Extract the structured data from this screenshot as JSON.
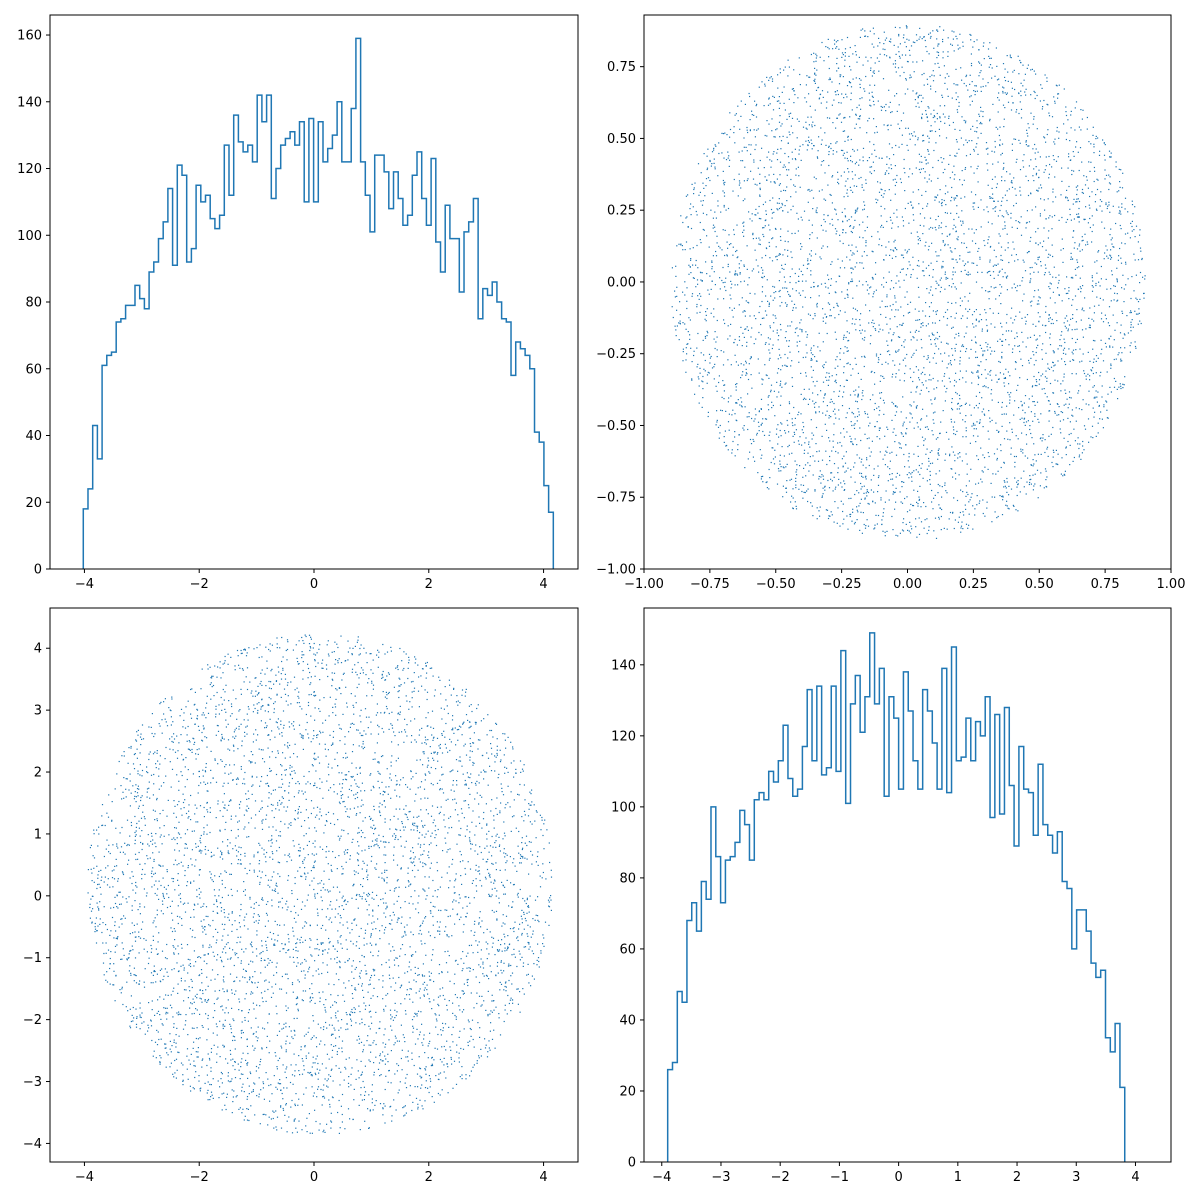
{
  "chart_data": [
    {
      "type": "histogram",
      "histtype": "step",
      "color": "#1f77b4",
      "xlim": [
        -4.6,
        4.6
      ],
      "ylim": [
        0,
        166
      ],
      "xticks": [
        -4,
        -2,
        0,
        2,
        4
      ],
      "xtick_labels": [
        "−4",
        "−2",
        "0",
        "2",
        "4"
      ],
      "yticks": [
        0,
        20,
        40,
        60,
        80,
        100,
        120,
        140,
        160
      ],
      "ytick_labels": [
        "0",
        "20",
        "40",
        "60",
        "80",
        "100",
        "120",
        "140",
        "160"
      ],
      "bin_start": -4.02,
      "bin_width": 0.0819,
      "counts": [
        18,
        24,
        43,
        33,
        61,
        64,
        65,
        74,
        75,
        79,
        79,
        85,
        81,
        78,
        89,
        92,
        99,
        104,
        114,
        91,
        121,
        118,
        92,
        96,
        115,
        110,
        112,
        105,
        102,
        106,
        127,
        112,
        136,
        128,
        125,
        127,
        122,
        142,
        134,
        142,
        111,
        120,
        127,
        129,
        131,
        127,
        134,
        110,
        135,
        110,
        134,
        122,
        126,
        130,
        140,
        122,
        122,
        138,
        159,
        122,
        112,
        101,
        124,
        124,
        119,
        108,
        119,
        111,
        103,
        106,
        118,
        125,
        111,
        103,
        123,
        98,
        89,
        109,
        99,
        99,
        83,
        101,
        104,
        111,
        75,
        84,
        82,
        86,
        80,
        75,
        74,
        58,
        68,
        66,
        64,
        60,
        41,
        38,
        25,
        17
      ],
      "title": "",
      "xlabel": "",
      "ylabel": ""
    },
    {
      "type": "scatter",
      "color": "#1f77b4",
      "xlim": [
        -1.0,
        1.0
      ],
      "ylim": [
        -1.0,
        0.93
      ],
      "xticks": [
        -1.0,
        -0.75,
        -0.5,
        -0.25,
        0.0,
        0.25,
        0.5,
        0.75,
        1.0
      ],
      "xtick_labels": [
        "−1.00",
        "−0.75",
        "−0.50",
        "−0.25",
        "0.00",
        "0.25",
        "0.50",
        "0.75",
        "1.00"
      ],
      "yticks": [
        -1.0,
        -0.75,
        -0.5,
        -0.25,
        0.0,
        0.25,
        0.5,
        0.75
      ],
      "ytick_labels": [
        "−1.00",
        "−0.75",
        "−0.50",
        "−0.25",
        "0.00",
        "0.25",
        "0.50",
        "0.75"
      ],
      "distribution": {
        "shape": "disk",
        "center": [
          0.0,
          0.0
        ],
        "radius": 0.9,
        "n_points": 5000
      },
      "title": "",
      "xlabel": "",
      "ylabel": ""
    },
    {
      "type": "scatter",
      "color": "#1f77b4",
      "xlim": [
        -4.6,
        4.6
      ],
      "ylim": [
        -4.3,
        4.65
      ],
      "xticks": [
        -4,
        -2,
        0,
        2,
        4
      ],
      "xtick_labels": [
        "−4",
        "−2",
        "0",
        "2",
        "4"
      ],
      "yticks": [
        -4,
        -3,
        -2,
        -1,
        0,
        1,
        2,
        3,
        4
      ],
      "ytick_labels": [
        "−4",
        "−3",
        "−2",
        "−1",
        "0",
        "1",
        "2",
        "3",
        "4"
      ],
      "distribution": {
        "shape": "disk",
        "center": [
          0.1,
          0.2
        ],
        "radius": 4.05,
        "n_points": 5000
      },
      "title": "",
      "xlabel": "",
      "ylabel": ""
    },
    {
      "type": "histogram",
      "histtype": "step",
      "color": "#1f77b4",
      "xlim": [
        -4.3,
        4.6
      ],
      "ylim": [
        0,
        156
      ],
      "xticks": [
        -4,
        -3,
        -2,
        -1,
        0,
        1,
        2,
        3,
        4
      ],
      "xtick_labels": [
        "−4",
        "−3",
        "−2",
        "−1",
        "0",
        "1",
        "2",
        "3",
        "4"
      ],
      "yticks": [
        0,
        20,
        40,
        60,
        80,
        100,
        120,
        140
      ],
      "ytick_labels": [
        "0",
        "20",
        "40",
        "60",
        "80",
        "100",
        "120",
        "140"
      ],
      "bin_start": -3.9,
      "bin_width": 0.08125,
      "counts": [
        26,
        28,
        48,
        45,
        68,
        73,
        65,
        79,
        74,
        100,
        86,
        73,
        85,
        86,
        90,
        99,
        95,
        85,
        102,
        104,
        102,
        110,
        107,
        113,
        123,
        108,
        103,
        105,
        117,
        133,
        113,
        134,
        109,
        111,
        134,
        110,
        144,
        101,
        129,
        137,
        121,
        131,
        149,
        129,
        139,
        103,
        131,
        125,
        105,
        138,
        127,
        113,
        105,
        133,
        127,
        118,
        105,
        139,
        104,
        145,
        113,
        114,
        125,
        113,
        124,
        120,
        131,
        97,
        126,
        98,
        128,
        106,
        89,
        117,
        105,
        104,
        92,
        112,
        95,
        92,
        87,
        93,
        79,
        77,
        60,
        71,
        71,
        65,
        56,
        52,
        54,
        35,
        31,
        39,
        21
      ],
      "title": "",
      "xlabel": "",
      "ylabel": ""
    }
  ]
}
